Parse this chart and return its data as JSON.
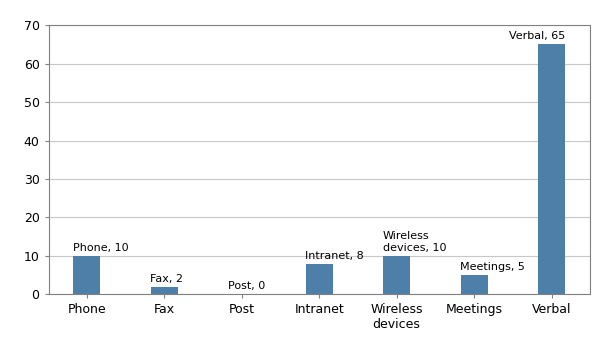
{
  "categories": [
    "Phone",
    "Fax",
    "Post",
    "Intranet",
    "Wireless\ndevices",
    "Meetings",
    "Verbal"
  ],
  "tick_labels": [
    "Phone",
    "Fax",
    "Post",
    "Intranet",
    "Wireless\ndevices",
    "Meetings",
    "Verbal"
  ],
  "values": [
    10,
    2,
    0,
    8,
    10,
    5,
    65
  ],
  "bar_color": "#4d7fa8",
  "ylim": [
    0,
    70
  ],
  "yticks": [
    0,
    10,
    20,
    30,
    40,
    50,
    60,
    70
  ],
  "label_names": [
    "Phone",
    "Fax",
    "Post",
    "Intranet",
    "Wireless\ndevices",
    "Meetings",
    "Verbal"
  ],
  "background_color": "#ffffff",
  "grid_color": "#c8c8c8",
  "spine_color": "#808080",
  "bar_width": 0.35
}
